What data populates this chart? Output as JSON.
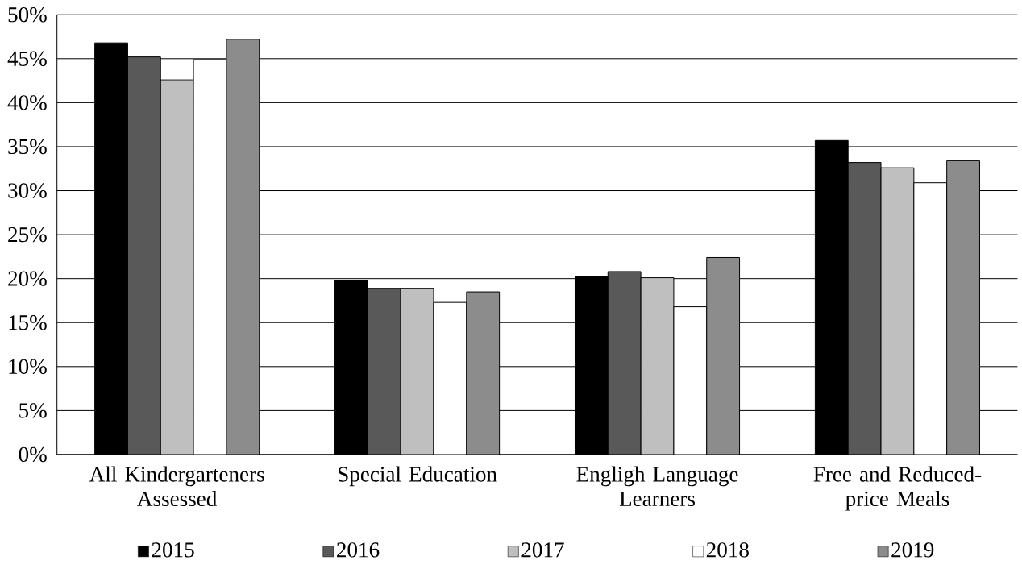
{
  "chart_data": {
    "type": "bar",
    "categories": [
      "All Kindergarteners Assessed",
      "Special Education",
      "Engligh Language Learners",
      "Free and Reduced-price Meals"
    ],
    "series": [
      {
        "name": "2015",
        "color": "#000000",
        "values": [
          46.8,
          19.8,
          20.2,
          35.7
        ]
      },
      {
        "name": "2016",
        "color": "#595959",
        "values": [
          45.2,
          18.9,
          20.8,
          33.2
        ]
      },
      {
        "name": "2017",
        "color": "#bfbfbf",
        "values": [
          42.6,
          18.9,
          20.1,
          32.6
        ]
      },
      {
        "name": "2018",
        "color": "#ffffff",
        "values": [
          44.9,
          17.3,
          16.8,
          30.9
        ]
      },
      {
        "name": "2019",
        "color": "#8c8c8c",
        "values": [
          47.2,
          18.5,
          22.4,
          33.4
        ]
      }
    ],
    "ylim": [
      0,
      50
    ],
    "yticks": [
      {
        "value": 0,
        "label": "0%"
      },
      {
        "value": 5,
        "label": "5%"
      },
      {
        "value": 10,
        "label": "10%"
      },
      {
        "value": 15,
        "label": "15%"
      },
      {
        "value": 20,
        "label": "20%"
      },
      {
        "value": 25,
        "label": "25%"
      },
      {
        "value": 30,
        "label": "30%"
      },
      {
        "value": 35,
        "label": "35%"
      },
      {
        "value": 40,
        "label": "40%"
      },
      {
        "value": 45,
        "label": "45%"
      },
      {
        "value": 50,
        "label": "50%"
      }
    ],
    "grid": "y",
    "legend": "bottom"
  }
}
